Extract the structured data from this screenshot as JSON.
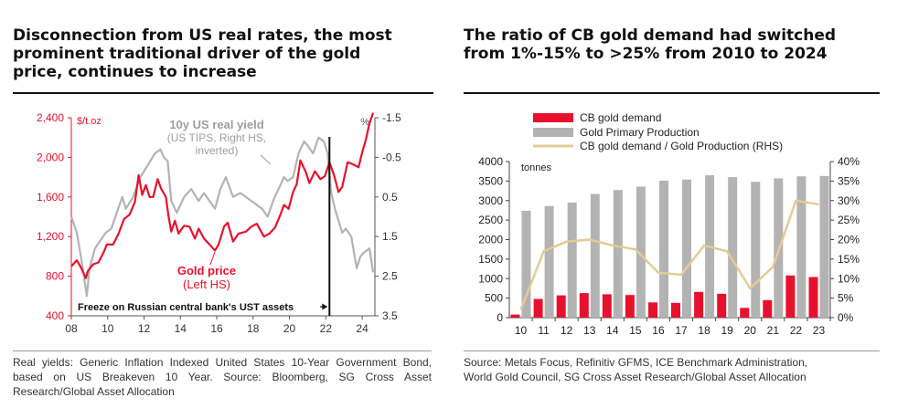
{
  "left_panel": {
    "title_lines": [
      "Disconnection from US real rates, the most",
      "prominent traditional driver of the gold",
      "price, continues to increase"
    ],
    "source": "Real yields: Generic Inflation Indexed United States 10-Year Government Bond, based on US Breakeven 10 Year. Source: Bloomberg, SG Cross Asset Research/Global Asset Allocation"
  },
  "right_panel": {
    "title_lines": [
      "The ratio of CB gold demand had switched",
      "from 1%-15% to >25% from 2010 to 2024"
    ],
    "source_lines": [
      "Source: Metals Focus, Refinitiv GFMS, ICE Benchmark Administration,",
      "World Gold Council, SG Cross Asset Research/Global Asset Allocation"
    ]
  },
  "colors": {
    "gold_red": "#e8112d",
    "gray": "#b3b3b3",
    "tan": "#e3cc92",
    "black": "#111111"
  },
  "chart_data": [
    {
      "type": "line",
      "x_ticks": [
        "08",
        "10",
        "12",
        "14",
        "16",
        "18",
        "20",
        "22",
        "24"
      ],
      "x_range": [
        2008,
        2024.7
      ],
      "left_axis": {
        "unit": "$/t.oz",
        "ticks": [
          "2,400",
          "2,000",
          "1,600",
          "1,200",
          "800",
          "400"
        ],
        "ylim": [
          400,
          2400
        ]
      },
      "right_axis": {
        "unit": "%",
        "ticks": [
          "-1.5",
          "-0.5",
          "0.5",
          "1.5",
          "2.5",
          "3.5"
        ],
        "ylim": [
          -1.5,
          3.5
        ],
        "inverted": true
      },
      "series": [
        {
          "name": "Gold price",
          "name_lines": [
            "Gold price",
            "(Left HS)"
          ],
          "axis": "left",
          "color": "#e8112d",
          "x": [
            2008.0,
            2008.3,
            2008.5,
            2008.8,
            2008.9,
            2009.2,
            2009.5,
            2009.8,
            2009.95,
            2010.3,
            2010.6,
            2010.9,
            2011.2,
            2011.5,
            2011.7,
            2011.9,
            2012.1,
            2012.3,
            2012.5,
            2012.75,
            2012.95,
            2013.2,
            2013.35,
            2013.5,
            2013.7,
            2013.9,
            2014.2,
            2014.5,
            2014.8,
            2015.0,
            2015.3,
            2015.6,
            2015.9,
            2016.1,
            2016.4,
            2016.6,
            2016.9,
            2017.2,
            2017.6,
            2017.9,
            2018.2,
            2018.6,
            2018.9,
            2019.2,
            2019.5,
            2019.7,
            2019.95,
            2020.2,
            2020.4,
            2020.6,
            2020.9,
            2021.1,
            2021.4,
            2021.7,
            2021.95,
            2022.2,
            2022.45,
            2022.7,
            2022.9,
            2023.2,
            2023.5,
            2023.8,
            2024.0,
            2024.2,
            2024.4,
            2024.6
          ],
          "y": [
            900,
            960,
            900,
            780,
            850,
            920,
            940,
            1050,
            1120,
            1120,
            1230,
            1380,
            1420,
            1550,
            1820,
            1620,
            1720,
            1600,
            1600,
            1780,
            1680,
            1600,
            1400,
            1250,
            1360,
            1230,
            1310,
            1300,
            1180,
            1280,
            1180,
            1120,
            1060,
            1120,
            1300,
            1340,
            1150,
            1230,
            1250,
            1300,
            1330,
            1200,
            1230,
            1290,
            1420,
            1520,
            1480,
            1650,
            1730,
            1970,
            1850,
            1740,
            1860,
            1780,
            1810,
            1950,
            1820,
            1650,
            1700,
            1950,
            1930,
            1900,
            2050,
            2180,
            2340,
            2450
          ]
        },
        {
          "name": "10y US real yield",
          "name_lines": [
            "10y US real yield",
            "(US TIPS, Right HS,",
            "inverted)"
          ],
          "axis": "right",
          "color": "#b3b3b3",
          "x": [
            2008.0,
            2008.3,
            2008.6,
            2008.85,
            2009.0,
            2009.3,
            2009.6,
            2009.9,
            2010.2,
            2010.5,
            2010.8,
            2011.0,
            2011.4,
            2011.8,
            2012.2,
            2012.6,
            2012.9,
            2013.1,
            2013.3,
            2013.5,
            2013.8,
            2014.2,
            2014.6,
            2015.0,
            2015.3,
            2015.6,
            2015.9,
            2016.2,
            2016.5,
            2016.9,
            2017.3,
            2017.6,
            2017.9,
            2018.2,
            2018.5,
            2018.8,
            2019.1,
            2019.4,
            2019.7,
            2019.9,
            2020.2,
            2020.5,
            2020.8,
            2021.0,
            2021.3,
            2021.6,
            2021.9,
            2022.1,
            2022.3,
            2022.5,
            2022.7,
            2022.9,
            2023.1,
            2023.4,
            2023.7,
            2023.9,
            2024.1,
            2024.4,
            2024.6
          ],
          "y": [
            1.0,
            1.4,
            2.2,
            3.0,
            2.3,
            1.8,
            1.6,
            1.4,
            1.3,
            0.9,
            0.5,
            0.8,
            0.5,
            0.0,
            -0.3,
            -0.6,
            -0.7,
            -0.5,
            -0.4,
            0.6,
            0.9,
            0.5,
            0.3,
            0.6,
            0.4,
            0.6,
            0.8,
            0.3,
            0.0,
            0.5,
            0.4,
            0.5,
            0.6,
            0.7,
            0.8,
            1.0,
            0.6,
            0.3,
            0.0,
            0.1,
            0.0,
            -0.6,
            -0.9,
            -0.8,
            -0.6,
            -1.0,
            -0.9,
            -0.6,
            0.4,
            0.8,
            1.1,
            1.4,
            1.3,
            1.5,
            2.3,
            2.0,
            1.9,
            1.8,
            2.4
          ]
        }
      ],
      "event_line": {
        "x": 2022.2,
        "label": "Freeze on Russian central bank's UST assets"
      }
    },
    {
      "type": "bar",
      "categories": [
        "10",
        "11",
        "12",
        "13",
        "14",
        "15",
        "16",
        "17",
        "18",
        "19",
        "20",
        "21",
        "22",
        "23"
      ],
      "left_axis": {
        "unit": "tonnes",
        "ylim": [
          0,
          4000
        ],
        "ticks": [
          "4000",
          "3500",
          "3000",
          "2500",
          "2000",
          "1500",
          "1000",
          "500",
          "0"
        ]
      },
      "right_axis": {
        "ylim": [
          0,
          40
        ],
        "ticks": [
          "40%",
          "35%",
          "30%",
          "25%",
          "20%",
          "15%",
          "10%",
          "5%",
          "0%"
        ]
      },
      "series": [
        {
          "name": "CB gold demand",
          "type": "bar",
          "color": "#e8112d",
          "values": [
            80,
            480,
            570,
            630,
            600,
            580,
            390,
            380,
            660,
            610,
            250,
            450,
            1080,
            1040
          ]
        },
        {
          "name": "Gold Primary Production",
          "type": "bar",
          "color": "#b3b3b3",
          "values": [
            2740,
            2860,
            2950,
            3170,
            3270,
            3360,
            3510,
            3540,
            3650,
            3600,
            3480,
            3570,
            3620,
            3630
          ]
        },
        {
          "name": "CB gold demand / Gold Production (RHS)",
          "type": "line",
          "axis": "right",
          "color": "#e3cc92",
          "values": [
            2,
            17,
            19.5,
            20,
            18.5,
            17.5,
            11.5,
            11,
            18.5,
            17,
            7.5,
            13,
            30,
            29
          ]
        }
      ]
    }
  ]
}
